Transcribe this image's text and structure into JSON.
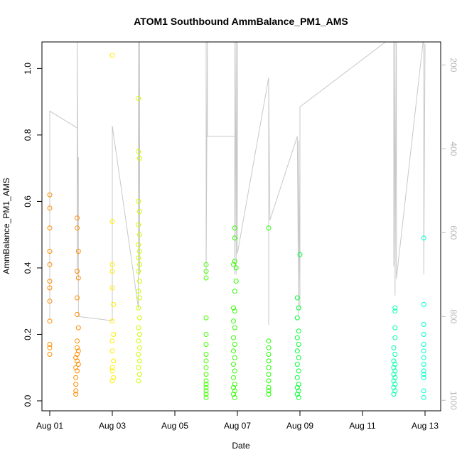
{
  "chart_data": {
    "type": "scatter",
    "title": "ATOM1 Southbound AmmBalance_PM1_AMS",
    "xlabel": "Date",
    "ylabel": "AmmBalance_PM1_AMS",
    "xlim": [
      "2013-07-31T18:00",
      "2013-08-13T12:00"
    ],
    "ylim": [
      -0.03,
      1.08
    ],
    "x_ticks": [
      {
        "date": "2013-08-01",
        "label": "Aug 01"
      },
      {
        "date": "2013-08-03",
        "label": "Aug 03"
      },
      {
        "date": "2013-08-05",
        "label": "Aug 05"
      },
      {
        "date": "2013-08-07",
        "label": "Aug 07"
      },
      {
        "date": "2013-08-09",
        "label": "Aug 09"
      },
      {
        "date": "2013-08-11",
        "label": "Aug 11"
      },
      {
        "date": "2013-08-13",
        "label": "Aug 13"
      }
    ],
    "y_ticks": [
      {
        "value": 0.0,
        "label": "0.0"
      },
      {
        "value": 0.2,
        "label": "0.2"
      },
      {
        "value": 0.4,
        "label": "0.4"
      },
      {
        "value": 0.6,
        "label": "0.6"
      },
      {
        "value": 0.8,
        "label": "0.8"
      },
      {
        "value": 1.0,
        "label": "1.0"
      }
    ],
    "secondary_axis": {
      "side": "right",
      "reversed": true,
      "ylim": [
        1025,
        145
      ],
      "ticks": [
        {
          "value": 200,
          "label": "200"
        },
        {
          "value": 400,
          "label": "400"
        },
        {
          "value": 600,
          "label": "600"
        },
        {
          "value": 800,
          "label": "800"
        },
        {
          "value": 1000,
          "label": "1000"
        }
      ],
      "color": "#bdbdbd"
    },
    "grid": false,
    "legend": "none",
    "colors": {
      "day1": "#ff8c00",
      "day3": "#ffee00",
      "day4": "#ccff00",
      "day6": "#44ff00",
      "day7": "#33ff00",
      "day8": "#22ff00",
      "day9": "#00ff33",
      "day12": "#00ffaa",
      "day13": "#00ffcc",
      "line": "#c8c8c8"
    },
    "series": [
      {
        "color_key": "day1",
        "points": [
          [
            "2013-08-01T00:00",
            0.62
          ],
          [
            "2013-08-01T00:00",
            0.58
          ],
          [
            "2013-08-01T00:00",
            0.52
          ],
          [
            "2013-08-01T00:00",
            0.45
          ],
          [
            "2013-08-01T00:00",
            0.41
          ],
          [
            "2013-08-01T00:00",
            0.36
          ],
          [
            "2013-08-01T00:00",
            0.34
          ],
          [
            "2013-08-01T00:00",
            0.3
          ],
          [
            "2013-08-01T00:00",
            0.24
          ],
          [
            "2013-08-01T00:00",
            0.17
          ],
          [
            "2013-08-01T00:00",
            0.16
          ],
          [
            "2013-08-01T00:00",
            0.14
          ],
          [
            "2013-08-01T21:00",
            0.55
          ],
          [
            "2013-08-01T21:00",
            0.52
          ],
          [
            "2013-08-01T22:00",
            0.45
          ],
          [
            "2013-08-01T21:00",
            0.39
          ],
          [
            "2013-08-01T22:00",
            0.37
          ],
          [
            "2013-08-01T21:00",
            0.31
          ],
          [
            "2013-08-01T21:00",
            0.26
          ],
          [
            "2013-08-01T22:00",
            0.22
          ],
          [
            "2013-08-01T21:00",
            0.18
          ],
          [
            "2013-08-01T21:00",
            0.16
          ],
          [
            "2013-08-01T22:00",
            0.15
          ],
          [
            "2013-08-01T21:00",
            0.14
          ],
          [
            "2013-08-01T20:00",
            0.13
          ],
          [
            "2013-08-01T21:00",
            0.12
          ],
          [
            "2013-08-01T22:00",
            0.11
          ],
          [
            "2013-08-01T20:00",
            0.1
          ],
          [
            "2013-08-01T21:00",
            0.09
          ],
          [
            "2013-08-01T20:00",
            0.07
          ],
          [
            "2013-08-01T20:00",
            0.05
          ],
          [
            "2013-08-01T20:00",
            0.03
          ],
          [
            "2013-08-01T20:00",
            0.02
          ]
        ]
      },
      {
        "color_key": "day3",
        "points": [
          [
            "2013-08-03T00:00",
            1.04
          ],
          [
            "2013-08-03T00:00",
            0.54
          ],
          [
            "2013-08-03T00:00",
            0.41
          ],
          [
            "2013-08-03T00:00",
            0.39
          ],
          [
            "2013-08-03T00:00",
            0.34
          ],
          [
            "2013-08-03T01:00",
            0.29
          ],
          [
            "2013-08-03T00:00",
            0.24
          ],
          [
            "2013-08-03T01:00",
            0.2
          ],
          [
            "2013-08-03T00:00",
            0.18
          ],
          [
            "2013-08-03T00:00",
            0.15
          ],
          [
            "2013-08-03T01:00",
            0.12
          ],
          [
            "2013-08-03T00:00",
            0.1
          ],
          [
            "2013-08-03T00:00",
            0.09
          ],
          [
            "2013-08-03T01:00",
            0.07
          ],
          [
            "2013-08-03T00:00",
            0.06
          ]
        ]
      },
      {
        "color_key": "day4",
        "points": [
          [
            "2013-08-03T20:00",
            0.91
          ],
          [
            "2013-08-03T20:00",
            0.75
          ],
          [
            "2013-08-03T21:00",
            0.73
          ],
          [
            "2013-08-03T20:00",
            0.6
          ],
          [
            "2013-08-03T21:00",
            0.57
          ],
          [
            "2013-08-03T20:00",
            0.53
          ],
          [
            "2013-08-03T21:00",
            0.5
          ],
          [
            "2013-08-03T20:00",
            0.47
          ],
          [
            "2013-08-03T21:00",
            0.45
          ],
          [
            "2013-08-03T20:00",
            0.43
          ],
          [
            "2013-08-03T21:00",
            0.41
          ],
          [
            "2013-08-03T20:00",
            0.39
          ],
          [
            "2013-08-03T21:00",
            0.36
          ],
          [
            "2013-08-03T20:00",
            0.33
          ],
          [
            "2013-08-03T21:00",
            0.31
          ],
          [
            "2013-08-03T20:00",
            0.28
          ],
          [
            "2013-08-03T21:00",
            0.25
          ],
          [
            "2013-08-03T20:00",
            0.22
          ],
          [
            "2013-08-03T21:00",
            0.2
          ],
          [
            "2013-08-03T20:00",
            0.18
          ],
          [
            "2013-08-03T21:00",
            0.16
          ],
          [
            "2013-08-03T20:00",
            0.14
          ],
          [
            "2013-08-03T21:00",
            0.12
          ],
          [
            "2013-08-03T20:00",
            0.1
          ],
          [
            "2013-08-03T21:00",
            0.08
          ],
          [
            "2013-08-03T20:00",
            0.06
          ]
        ]
      },
      {
        "color_key": "day6",
        "points": [
          [
            "2013-08-06T00:00",
            0.41
          ],
          [
            "2013-08-06T00:00",
            0.39
          ],
          [
            "2013-08-06T00:00",
            0.37
          ],
          [
            "2013-08-06T00:00",
            0.25
          ],
          [
            "2013-08-06T00:00",
            0.2
          ],
          [
            "2013-08-06T00:00",
            0.17
          ],
          [
            "2013-08-06T00:00",
            0.14
          ],
          [
            "2013-08-06T00:00",
            0.12
          ],
          [
            "2013-08-06T00:00",
            0.1
          ],
          [
            "2013-08-06T00:00",
            0.08
          ],
          [
            "2013-08-06T00:00",
            0.06
          ],
          [
            "2013-08-06T00:00",
            0.05
          ],
          [
            "2013-08-06T00:00",
            0.04
          ],
          [
            "2013-08-06T00:00",
            0.03
          ],
          [
            "2013-08-06T00:00",
            0.02
          ],
          [
            "2013-08-06T00:00",
            0.01
          ]
        ]
      },
      {
        "color_key": "day7",
        "points": [
          [
            "2013-08-06T22:00",
            0.52
          ],
          [
            "2013-08-06T22:00",
            0.49
          ],
          [
            "2013-08-06T22:00",
            0.42
          ],
          [
            "2013-08-06T21:00",
            0.41
          ],
          [
            "2013-08-06T23:00",
            0.4
          ],
          [
            "2013-08-06T23:00",
            0.36
          ],
          [
            "2013-08-06T22:00",
            0.33
          ],
          [
            "2013-08-06T21:00",
            0.28
          ],
          [
            "2013-08-06T22:00",
            0.27
          ],
          [
            "2013-08-06T21:00",
            0.24
          ],
          [
            "2013-08-06T22:00",
            0.22
          ],
          [
            "2013-08-06T21:00",
            0.19
          ],
          [
            "2013-08-06T22:00",
            0.17
          ],
          [
            "2013-08-06T21:00",
            0.15
          ],
          [
            "2013-08-06T22:00",
            0.13
          ],
          [
            "2013-08-06T21:00",
            0.11
          ],
          [
            "2013-08-06T22:00",
            0.09
          ],
          [
            "2013-08-06T21:00",
            0.07
          ],
          [
            "2013-08-06T22:00",
            0.05
          ],
          [
            "2013-08-06T21:00",
            0.04
          ],
          [
            "2013-08-06T22:00",
            0.03
          ],
          [
            "2013-08-06T21:00",
            0.02
          ],
          [
            "2013-08-06T22:00",
            0.01
          ]
        ]
      },
      {
        "color_key": "day8",
        "points": [
          [
            "2013-08-08T00:00",
            0.52
          ],
          [
            "2013-08-08T00:00",
            0.18
          ],
          [
            "2013-08-08T00:00",
            0.16
          ],
          [
            "2013-08-08T00:00",
            0.14
          ],
          [
            "2013-08-08T00:00",
            0.12
          ],
          [
            "2013-08-08T00:00",
            0.1
          ],
          [
            "2013-08-08T00:00",
            0.08
          ],
          [
            "2013-08-08T00:00",
            0.06
          ],
          [
            "2013-08-08T00:00",
            0.04
          ],
          [
            "2013-08-08T00:00",
            0.03
          ],
          [
            "2013-08-08T00:00",
            0.02
          ]
        ]
      },
      {
        "color_key": "day9",
        "points": [
          [
            "2013-08-09T00:00",
            0.44
          ],
          [
            "2013-08-08T22:00",
            0.31
          ],
          [
            "2013-08-08T23:00",
            0.28
          ],
          [
            "2013-08-08T22:00",
            0.25
          ],
          [
            "2013-08-08T23:00",
            0.21
          ],
          [
            "2013-08-08T22:00",
            0.19
          ],
          [
            "2013-08-08T23:00",
            0.17
          ],
          [
            "2013-08-08T22:00",
            0.15
          ],
          [
            "2013-08-08T23:00",
            0.13
          ],
          [
            "2013-08-08T22:00",
            0.11
          ],
          [
            "2013-08-08T23:00",
            0.09
          ],
          [
            "2013-08-08T22:00",
            0.07
          ],
          [
            "2013-08-08T23:00",
            0.05
          ],
          [
            "2013-08-08T22:00",
            0.04
          ],
          [
            "2013-08-08T23:00",
            0.03
          ],
          [
            "2013-08-08T22:00",
            0.02
          ],
          [
            "2013-08-08T23:00",
            0.01
          ]
        ]
      },
      {
        "color_key": "day12",
        "points": [
          [
            "2013-08-12T01:00",
            0.28
          ],
          [
            "2013-08-12T01:00",
            0.27
          ],
          [
            "2013-08-12T01:00",
            0.22
          ],
          [
            "2013-08-12T01:00",
            0.19
          ],
          [
            "2013-08-12T00:00",
            0.16
          ],
          [
            "2013-08-12T01:00",
            0.14
          ],
          [
            "2013-08-12T00:00",
            0.12
          ],
          [
            "2013-08-12T01:00",
            0.11
          ],
          [
            "2013-08-12T00:00",
            0.1
          ],
          [
            "2013-08-12T01:00",
            0.09
          ],
          [
            "2013-08-12T00:00",
            0.08
          ],
          [
            "2013-08-12T01:00",
            0.07
          ],
          [
            "2013-08-12T00:00",
            0.06
          ],
          [
            "2013-08-12T01:00",
            0.05
          ],
          [
            "2013-08-12T00:00",
            0.04
          ],
          [
            "2013-08-12T01:00",
            0.03
          ],
          [
            "2013-08-12T00:00",
            0.02
          ]
        ]
      },
      {
        "color_key": "day13",
        "points": [
          [
            "2013-08-12T23:00",
            0.49
          ],
          [
            "2013-08-12T23:00",
            0.29
          ],
          [
            "2013-08-12T23:00",
            0.23
          ],
          [
            "2013-08-12T23:00",
            0.2
          ],
          [
            "2013-08-12T23:00",
            0.17
          ],
          [
            "2013-08-12T23:00",
            0.15
          ],
          [
            "2013-08-12T23:00",
            0.13
          ],
          [
            "2013-08-12T23:00",
            0.11
          ],
          [
            "2013-08-12T23:00",
            0.09
          ],
          [
            "2013-08-12T23:00",
            0.08
          ],
          [
            "2013-08-12T23:00",
            0.07
          ],
          [
            "2013-08-12T23:00",
            0.03
          ],
          [
            "2013-08-12T23:00",
            0.01
          ]
        ]
      }
    ],
    "line_series": {
      "color_key": "line",
      "axis": "right",
      "points": [
        [
          "2013-08-01T00:00",
          808
        ],
        [
          "2013-08-01T00:00",
          310
        ],
        [
          "2013-08-01T21:00",
          350
        ],
        [
          "2013-08-01T21:00",
          700
        ],
        [
          "2013-08-01T21:00",
          130
        ],
        [
          "2013-08-01T22:00",
          760
        ],
        [
          "2013-08-01T22:00",
          420
        ],
        [
          "2013-08-01T22:00",
          800
        ],
        [
          "2013-08-03T00:00",
          810
        ],
        [
          "2013-08-03T00:00",
          780
        ],
        [
          "2013-08-03T00:00",
          345
        ],
        [
          "2013-08-03T20:00",
          780
        ],
        [
          "2013-08-03T20:00",
          130
        ],
        [
          "2013-08-03T20:00",
          720
        ],
        [
          "2013-08-03T21:00",
          130
        ],
        [
          "2013-08-03T21:00",
          700
        ],
        [
          "2013-08-03T21:00",
          130
        ],
        [
          "2013-08-05T00:00",
          140
        ],
        [
          "2013-08-06T00:00",
          140
        ],
        [
          "2013-08-06T00:00",
          700
        ],
        [
          "2013-08-06T01:00",
          130
        ],
        [
          "2013-08-06T01:00",
          370
        ],
        [
          "2013-08-06T22:00",
          370
        ],
        [
          "2013-08-06T22:00",
          130
        ],
        [
          "2013-08-06T22:00",
          700
        ],
        [
          "2013-08-06T23:00",
          130
        ],
        [
          "2013-08-06T23:00",
          700
        ],
        [
          "2013-08-07T00:00",
          130
        ],
        [
          "2013-08-07T00:00",
          650
        ],
        [
          "2013-08-08T00:00",
          230
        ],
        [
          "2013-08-08T00:00",
          820
        ],
        [
          "2013-08-08T00:00",
          250
        ],
        [
          "2013-08-08T01:00",
          570
        ],
        [
          "2013-08-08T22:00",
          370
        ],
        [
          "2013-08-08T23:00",
          800
        ],
        [
          "2013-08-08T23:00",
          380
        ],
        [
          "2013-08-09T00:00",
          780
        ],
        [
          "2013-08-09T00:00",
          300
        ],
        [
          "2013-08-12T00:00",
          130
        ],
        [
          "2013-08-12T00:00",
          680
        ],
        [
          "2013-08-12T01:00",
          130
        ],
        [
          "2013-08-12T01:00",
          750
        ],
        [
          "2013-08-12T02:00",
          130
        ],
        [
          "2013-08-12T02:00",
          710
        ],
        [
          "2013-08-12T23:00",
          130
        ],
        [
          "2013-08-12T23:00",
          700
        ],
        [
          "2013-08-13T00:00",
          150
        ]
      ]
    }
  }
}
